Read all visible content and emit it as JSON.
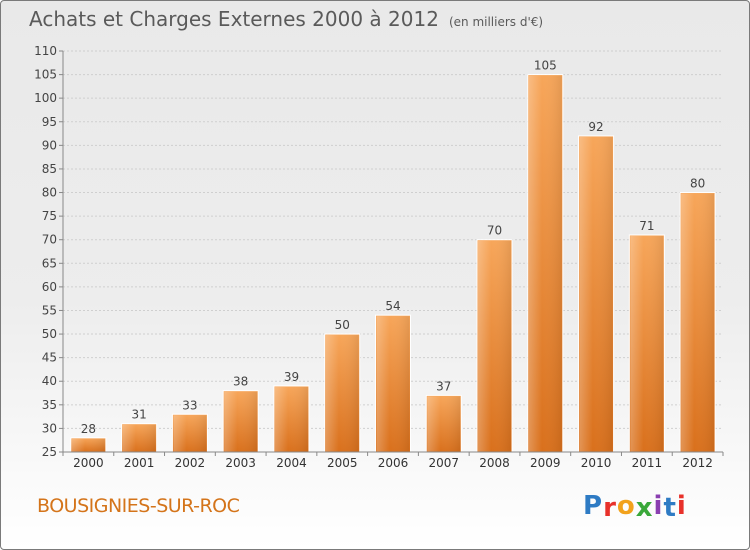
{
  "title": "Achats et Charges Externes 2000 à 2012",
  "unit": "(en milliers d'€)",
  "city": "BOUSIGNIES-SUR-ROC",
  "logo": {
    "text": "Proxiti",
    "colors": [
      "#2e7bc4",
      "#e8312a",
      "#f2a21c",
      "#3aa83a",
      "#8a3fb0",
      "#2e7bc4",
      "#e8312a"
    ]
  },
  "chart_data": {
    "type": "bar",
    "categories": [
      "2000",
      "2001",
      "2002",
      "2003",
      "2004",
      "2005",
      "2006",
      "2007",
      "2008",
      "2009",
      "2010",
      "2011",
      "2012"
    ],
    "values": [
      28,
      31,
      33,
      38,
      39,
      50,
      54,
      37,
      70,
      105,
      92,
      71,
      80
    ],
    "ylim": [
      25,
      110
    ],
    "yticks": [
      25,
      30,
      35,
      40,
      45,
      50,
      55,
      60,
      65,
      70,
      75,
      80,
      85,
      90,
      95,
      100,
      105,
      110
    ],
    "grid": true,
    "bar_color": "#f0913a"
  }
}
